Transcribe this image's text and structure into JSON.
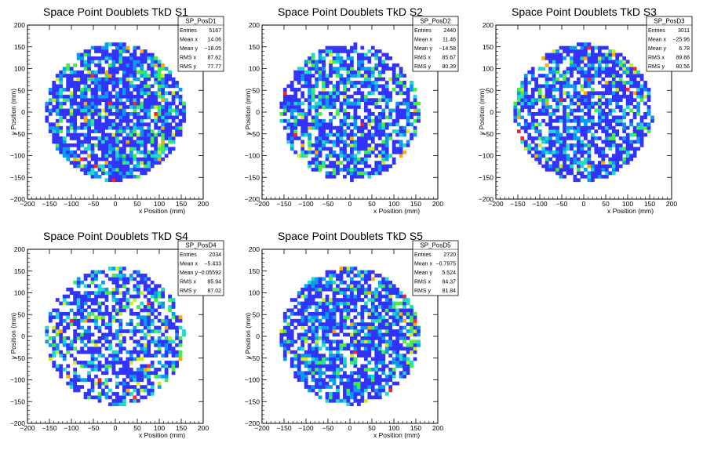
{
  "chart_data": [
    {
      "type": "heatmap",
      "title": "Space Point Doublets TkD S1",
      "xlabel": "x Position (mm)",
      "ylabel": "y Position (mm)",
      "xlim": [
        -200,
        200
      ],
      "ylim": [
        -200,
        200
      ],
      "xticks": [
        -200,
        -150,
        -100,
        -50,
        0,
        50,
        100,
        150,
        200
      ],
      "yticks": [
        -200,
        -150,
        -100,
        -50,
        0,
        50,
        100,
        150,
        200
      ],
      "stats": {
        "name": "SP_PosD1",
        "rows": [
          {
            "label": "Entries",
            "value": "5167"
          },
          {
            "label": "Mean x",
            "value": "14.06"
          },
          {
            "label": "Mean y",
            "value": "−18.05"
          },
          {
            "label": "RMS x",
            "value": "87.62"
          },
          {
            "label": "RMS y",
            "value": "77.77"
          }
        ]
      },
      "distribution": {
        "radius_mm": 160,
        "center_mm": [
          0,
          0
        ],
        "fill": 0.78,
        "mean_level": 1.7,
        "hot_band_x_mm": 95
      }
    },
    {
      "type": "heatmap",
      "title": "Space Point Doublets TkD S2",
      "xlabel": "x Position (mm)",
      "ylabel": "y Position (mm)",
      "xlim": [
        -200,
        200
      ],
      "ylim": [
        -200,
        200
      ],
      "xticks": [
        -200,
        -150,
        -100,
        -50,
        0,
        50,
        100,
        150,
        200
      ],
      "yticks": [
        -200,
        -150,
        -100,
        -50,
        0,
        50,
        100,
        150,
        200
      ],
      "stats": {
        "name": "SP_PosD2",
        "rows": [
          {
            "label": "Entries",
            "value": "2440"
          },
          {
            "label": "Mean x",
            "value": "11.46"
          },
          {
            "label": "Mean y",
            "value": "−14.58"
          },
          {
            "label": "RMS x",
            "value": "85.67"
          },
          {
            "label": "RMS y",
            "value": "80.39"
          }
        ]
      },
      "distribution": {
        "radius_mm": 160,
        "center_mm": [
          0,
          0
        ],
        "fill": 0.68,
        "mean_level": 1.5,
        "hot_band_x_mm": 150
      }
    },
    {
      "type": "heatmap",
      "title": "Space Point Doublets TkD S3",
      "xlabel": "x Position (mm)",
      "ylabel": "y Position (mm)",
      "xlim": [
        -200,
        200
      ],
      "ylim": [
        -200,
        200
      ],
      "xticks": [
        -200,
        -150,
        -100,
        -50,
        0,
        50,
        100,
        150,
        200
      ],
      "yticks": [
        -200,
        -150,
        -100,
        -50,
        0,
        50,
        100,
        150,
        200
      ],
      "stats": {
        "name": "SP_PosD3",
        "rows": [
          {
            "label": "Entries",
            "value": "3011"
          },
          {
            "label": "Mean x",
            "value": "−25.96"
          },
          {
            "label": "Mean y",
            "value": "6.78"
          },
          {
            "label": "RMS x",
            "value": "89.88"
          },
          {
            "label": "RMS y",
            "value": "80.56"
          }
        ]
      },
      "distribution": {
        "radius_mm": 160,
        "center_mm": [
          0,
          0
        ],
        "fill": 0.72,
        "mean_level": 1.5,
        "hot_band_x_mm": -150
      }
    },
    {
      "type": "heatmap",
      "title": "Space Point Doublets TkD S4",
      "xlabel": "x Position (mm)",
      "ylabel": "y Position (mm)",
      "xlim": [
        -200,
        200
      ],
      "ylim": [
        -200,
        200
      ],
      "xticks": [
        -200,
        -150,
        -100,
        -50,
        0,
        50,
        100,
        150,
        200
      ],
      "yticks": [
        -200,
        -150,
        -100,
        -50,
        0,
        50,
        100,
        150,
        200
      ],
      "stats": {
        "name": "SP_PosD4",
        "rows": [
          {
            "label": "Entries",
            "value": "2034"
          },
          {
            "label": "Mean x",
            "value": "−5.433"
          },
          {
            "label": "Mean y",
            "value": "−0.05592"
          },
          {
            "label": "RMS x",
            "value": "85.94"
          },
          {
            "label": "RMS y",
            "value": "87.02"
          }
        ]
      },
      "distribution": {
        "radius_mm": 160,
        "center_mm": [
          0,
          0
        ],
        "fill": 0.62,
        "mean_level": 1.4,
        "hot_band_x_mm": 150
      }
    },
    {
      "type": "heatmap",
      "title": "Space Point Doublets TkD S5",
      "xlabel": "x Position (mm)",
      "ylabel": "y Position (mm)",
      "xlim": [
        -200,
        200
      ],
      "ylim": [
        -200,
        200
      ],
      "xticks": [
        -200,
        -150,
        -100,
        -50,
        0,
        50,
        100,
        150,
        200
      ],
      "yticks": [
        -200,
        -150,
        -100,
        -50,
        0,
        50,
        100,
        150,
        200
      ],
      "stats": {
        "name": "SP_PosD5",
        "rows": [
          {
            "label": "Entries",
            "value": "2720"
          },
          {
            "label": "Mean x",
            "value": "−0.7975"
          },
          {
            "label": "Mean y",
            "value": "5.524"
          },
          {
            "label": "RMS x",
            "value": "84.37"
          },
          {
            "label": "RMS y",
            "value": "81.84"
          }
        ]
      },
      "distribution": {
        "radius_mm": 160,
        "center_mm": [
          0,
          0
        ],
        "fill": 0.74,
        "mean_level": 2.2,
        "hot_band_x_mm": 140
      }
    }
  ],
  "colors": {
    "palette": [
      "#3333ff",
      "#0a9bf0",
      "#1ed9c8",
      "#44ee44",
      "#c8ee1e",
      "#ffaa00",
      "#ff2222"
    ],
    "frame": "#000000",
    "background": "#ffffff"
  }
}
